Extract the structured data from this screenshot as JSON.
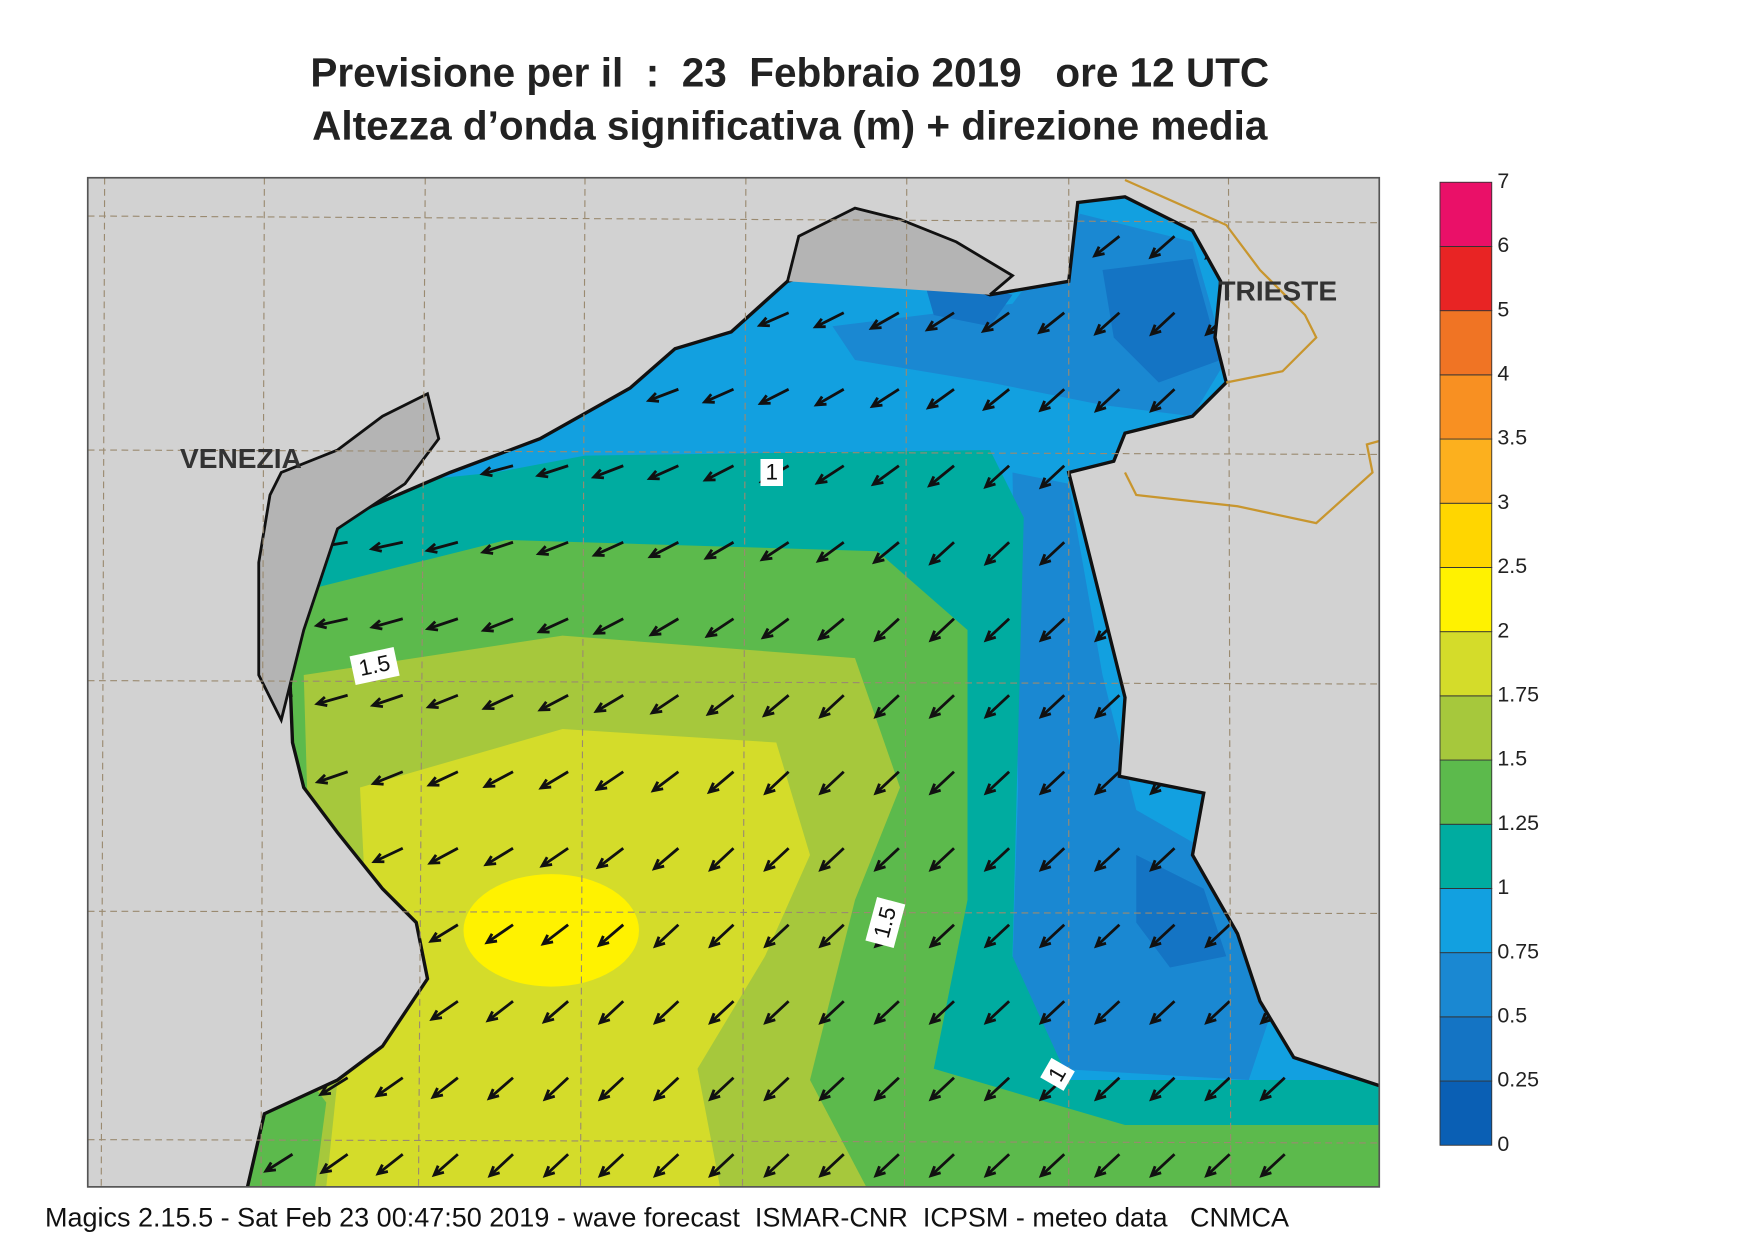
{
  "title": "Previsione per il  :  23  Febbraio 2019   ore 12 UTC",
  "subtitle": "Altezza d’onda significativa (m) + direzione media",
  "places": [
    "VENEZIA",
    "TRIESTE"
  ],
  "contour_labels": [
    "1",
    "1.5",
    "1.5",
    "1"
  ],
  "legend": {
    "levels": [
      0,
      0.25,
      0.5,
      0.75,
      1,
      1.25,
      1.5,
      1.75,
      2,
      2.5,
      3,
      3.5,
      4,
      5,
      6,
      7
    ],
    "colors": [
      "#0a5fb4",
      "#1474c4",
      "#1a88d2",
      "#12a0e0",
      "#00aca0",
      "#5cba4c",
      "#a6c83c",
      "#d4dc2a",
      "#fff200",
      "#ffd600",
      "#fcb01e",
      "#f89022",
      "#f07424",
      "#e82424",
      "#ea1068"
    ]
  },
  "footer": "Magics 2.15.5 - Sat Feb 23 00:47:50 2019 - wave forecast  ISMAR-CNR  ICPSM - meteo data   CNMCA"
}
